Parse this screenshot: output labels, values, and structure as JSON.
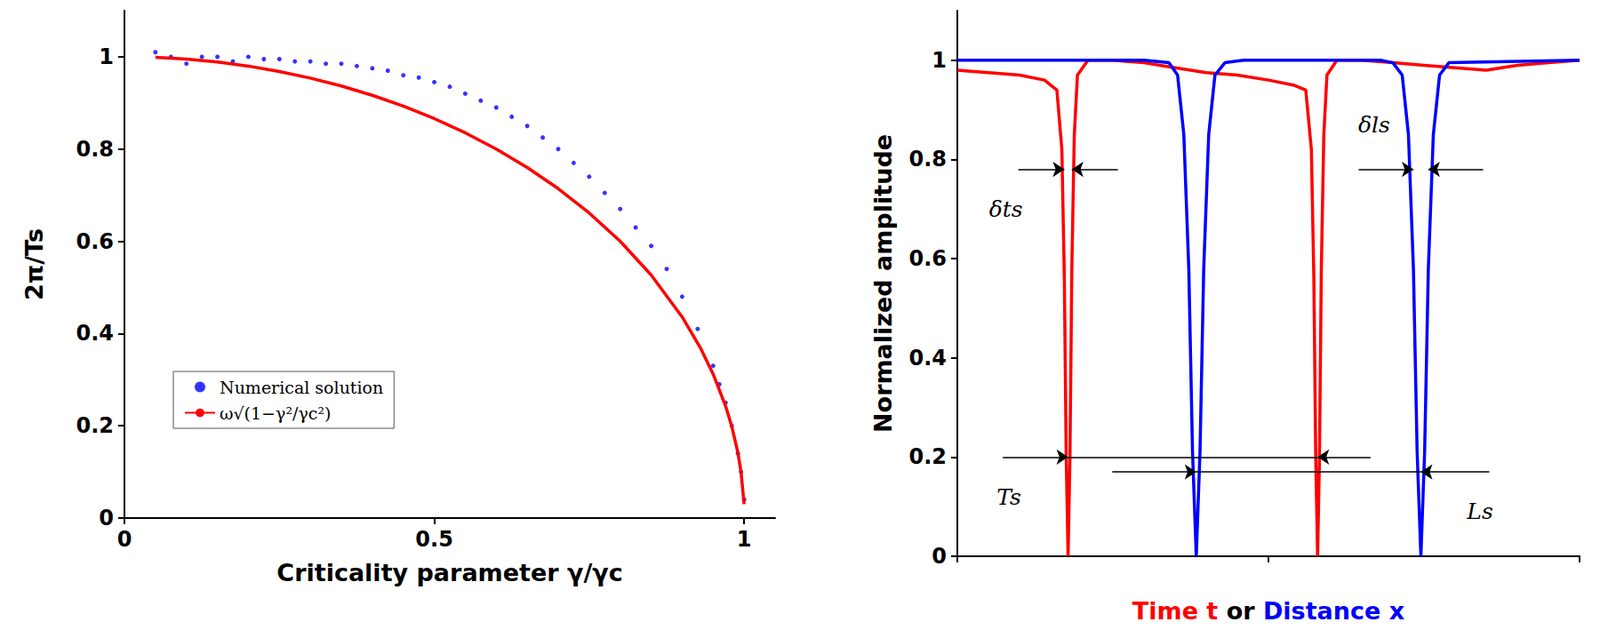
{
  "chart_data": [
    {
      "type": "line",
      "xlabel": "Criticality parameter γ/γc",
      "ylabel": "2π/Ts",
      "xlim": [
        0,
        1.05
      ],
      "xticks": [
        0,
        0.5,
        1
      ],
      "ylim": [
        0,
        1.1
      ],
      "yticks": [
        0,
        0.2,
        0.4,
        0.6,
        0.8,
        1
      ],
      "grid": false,
      "legend": "lower left",
      "series": [
        {
          "name": "Numerical solution",
          "type": "scatter",
          "marker": "circle",
          "color": "#0000ff",
          "x": [
            0.05,
            0.075,
            0.1,
            0.125,
            0.15,
            0.175,
            0.2,
            0.225,
            0.25,
            0.275,
            0.3,
            0.325,
            0.35,
            0.375,
            0.4,
            0.425,
            0.45,
            0.475,
            0.5,
            0.525,
            0.55,
            0.575,
            0.6,
            0.625,
            0.65,
            0.675,
            0.7,
            0.725,
            0.75,
            0.775,
            0.8,
            0.825,
            0.85,
            0.875,
            0.9,
            0.925,
            0.95,
            0.96,
            0.97,
            0.98,
            0.99,
            0.995,
            1.0
          ],
          "values": [
            1.01,
            1.0,
            0.985,
            1.0,
            1.0,
            0.99,
            1.0,
            0.995,
            0.995,
            0.99,
            0.99,
            0.985,
            0.985,
            0.98,
            0.975,
            0.97,
            0.96,
            0.955,
            0.945,
            0.935,
            0.92,
            0.905,
            0.89,
            0.87,
            0.85,
            0.825,
            0.8,
            0.77,
            0.74,
            0.705,
            0.67,
            0.63,
            0.59,
            0.54,
            0.48,
            0.41,
            0.33,
            0.29,
            0.25,
            0.2,
            0.14,
            0.1,
            0.04
          ]
        },
        {
          "name": "ω√(1−γ²/γc²)",
          "type": "line",
          "line_style": "solid",
          "color": "#ff0000",
          "x": [
            0.05,
            0.1,
            0.15,
            0.2,
            0.25,
            0.3,
            0.35,
            0.4,
            0.45,
            0.5,
            0.55,
            0.6,
            0.65,
            0.7,
            0.75,
            0.8,
            0.85,
            0.9,
            0.93,
            0.95,
            0.97,
            0.98,
            0.99,
            0.995,
            1.0
          ],
          "values": [
            0.9987,
            0.995,
            0.9887,
            0.9798,
            0.9682,
            0.9539,
            0.9367,
            0.9165,
            0.893,
            0.866,
            0.8352,
            0.8,
            0.7599,
            0.7141,
            0.6614,
            0.6,
            0.5268,
            0.4359,
            0.3676,
            0.3122,
            0.2431,
            0.199,
            0.1411,
            0.0999,
            0.03
          ]
        }
      ]
    },
    {
      "type": "line",
      "xlabel": [
        "Time t",
        "or",
        "Distance x"
      ],
      "ylabel": "Normalized amplitude",
      "xlim": [
        0,
        10
      ],
      "xticks": [
        0,
        5,
        10
      ],
      "ylim": [
        0,
        1.1
      ],
      "yticks": [
        0,
        0.2,
        0.4,
        0.6,
        0.8,
        1
      ],
      "tick_labels": "y",
      "grid": false,
      "annotations": [
        "δts",
        "δls",
        "Ts",
        "Ls"
      ],
      "series": [
        {
          "type": "line",
          "line_style": "solid",
          "color": "#ff0000",
          "x": [
            0,
            0.5,
            1.0,
            1.4,
            1.6,
            1.68,
            1.72,
            1.75,
            1.78,
            1.81,
            1.84,
            1.88,
            1.93,
            2.1,
            2.5,
            3.0,
            3.5,
            4.0,
            4.5,
            5.0,
            5.4,
            5.6,
            5.69,
            5.73,
            5.76,
            5.79,
            5.82,
            5.85,
            5.89,
            5.94,
            6.1,
            6.5,
            7.0,
            7.5,
            8.0,
            8.5,
            9.0,
            9.5,
            10
          ],
          "values": [
            0.98,
            0.975,
            0.97,
            0.96,
            0.94,
            0.82,
            0.56,
            0.2,
            0,
            0.2,
            0.58,
            0.85,
            0.97,
            1,
            1,
            0.995,
            0.985,
            0.975,
            0.97,
            0.96,
            0.95,
            0.94,
            0.82,
            0.56,
            0.2,
            0,
            0.2,
            0.58,
            0.85,
            0.97,
            1,
            1,
            0.995,
            0.99,
            0.985,
            0.98,
            0.99,
            0.995,
            1
          ]
        },
        {
          "type": "line",
          "line_style": "solid",
          "color": "#0000ff",
          "x": [
            0,
            3.0,
            3.4,
            3.54,
            3.64,
            3.72,
            3.78,
            3.84,
            3.9,
            3.96,
            4.04,
            4.14,
            4.3,
            4.6,
            6.8,
            7.0,
            7.15,
            7.25,
            7.33,
            7.39,
            7.45,
            7.51,
            7.57,
            7.65,
            7.75,
            7.9,
            10
          ],
          "values": [
            1,
            1,
            0.995,
            0.97,
            0.85,
            0.58,
            0.21,
            0,
            0.21,
            0.58,
            0.85,
            0.97,
            0.995,
            1,
            1,
            0.995,
            0.97,
            0.85,
            0.58,
            0.21,
            0,
            0.21,
            0.58,
            0.85,
            0.97,
            0.995,
            1
          ]
        }
      ]
    }
  ]
}
